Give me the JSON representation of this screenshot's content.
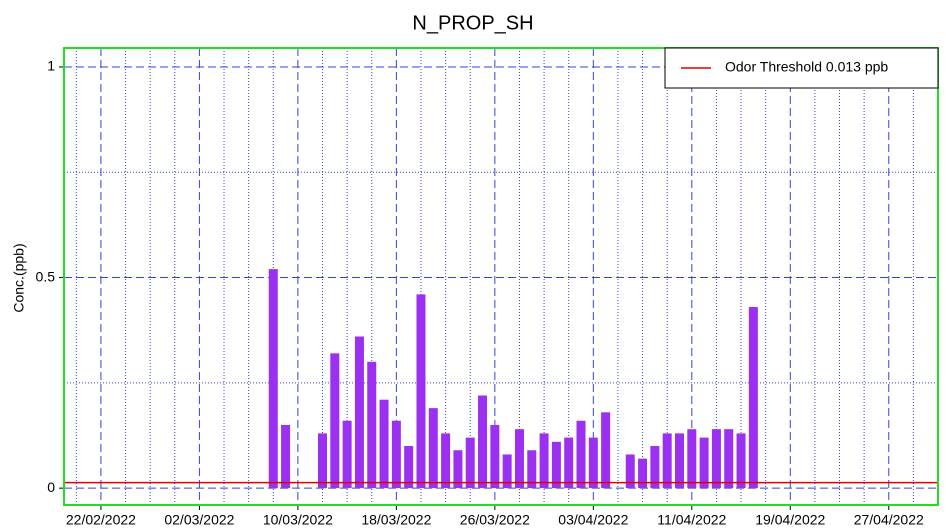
{
  "chart_data": {
    "type": "spike",
    "title": "N_PROP_SH",
    "y_label": "Conc.(ppb)",
    "x": [
      "2022-02-19",
      "2022-02-20",
      "2022-02-21",
      "2022-02-22",
      "2022-02-23",
      "2022-02-24",
      "2022-02-25",
      "2022-02-26",
      "2022-02-27",
      "2022-02-28",
      "2022-03-01",
      "2022-03-02",
      "2022-03-03",
      "2022-03-04",
      "2022-03-05",
      "2022-03-06",
      "2022-03-07",
      "2022-03-08",
      "2022-03-09",
      "2022-03-10",
      "2022-03-11",
      "2022-03-12",
      "2022-03-13",
      "2022-03-14",
      "2022-03-15",
      "2022-03-16",
      "2022-03-17",
      "2022-03-18",
      "2022-03-19",
      "2022-03-20",
      "2022-03-21",
      "2022-03-22",
      "2022-03-23",
      "2022-03-24",
      "2022-03-25",
      "2022-03-26",
      "2022-03-27",
      "2022-03-28",
      "2022-03-29",
      "2022-03-30",
      "2022-03-31",
      "2022-04-01",
      "2022-04-02",
      "2022-04-03",
      "2022-04-04",
      "2022-04-05",
      "2022-04-06",
      "2022-04-07",
      "2022-04-08",
      "2022-04-09",
      "2022-04-10",
      "2022-04-11",
      "2022-04-12",
      "2022-04-13",
      "2022-04-14",
      "2022-04-15",
      "2022-04-16",
      "2022-04-17",
      "2022-04-18",
      "2022-04-19",
      "2022-04-20",
      "2022-04-21",
      "2022-04-22",
      "2022-04-23",
      "2022-04-24",
      "2022-04-25",
      "2022-04-26",
      "2022-04-27",
      "2022-04-28",
      "2022-04-29",
      "2022-04-30"
    ],
    "values": [
      0,
      0,
      0,
      0,
      0,
      0,
      0,
      0,
      0,
      0,
      0,
      0,
      0,
      0,
      0,
      0,
      0,
      0.52,
      0.15,
      0,
      0,
      0.13,
      0.32,
      0.16,
      0.36,
      0.3,
      0.21,
      0.16,
      0.1,
      0.46,
      0.19,
      0.13,
      0.09,
      0.12,
      0.22,
      0.15,
      0.08,
      0.14,
      0.09,
      0.13,
      0.11,
      0.12,
      0.16,
      0.12,
      0.18,
      0,
      0.08,
      0.07,
      0.1,
      0.13,
      0.13,
      0.14,
      0.12,
      0.14,
      0.14,
      0.13,
      0.43,
      0,
      0,
      0,
      0,
      0,
      0,
      0,
      0,
      0,
      0,
      0,
      0,
      0,
      0
    ],
    "color": "#9b30f0",
    "threshold": {
      "label": "Odor Threshold 0.013 ppb",
      "value": 0.013,
      "color": "#e00000"
    },
    "xlim": [
      "2022-02-19",
      "2022-05-01"
    ],
    "xticks": [
      {
        "value": "2022-02-22",
        "label": "22/02/2022"
      },
      {
        "value": "2022-03-02",
        "label": "02/03/2022"
      },
      {
        "value": "2022-03-10",
        "label": "10/03/2022"
      },
      {
        "value": "2022-03-18",
        "label": "18/03/2022"
      },
      {
        "value": "2022-03-26",
        "label": "26/03/2022"
      },
      {
        "value": "2022-04-03",
        "label": "03/04/2022"
      },
      {
        "value": "2022-04-11",
        "label": "11/04/2022"
      },
      {
        "value": "2022-04-19",
        "label": "19/04/2022"
      },
      {
        "value": "2022-04-27",
        "label": "27/04/2022"
      }
    ],
    "minor_xtick_interval_days": 2,
    "ylim": [
      -0.04,
      1.045
    ],
    "yticks": [
      0,
      0.5,
      1
    ],
    "minor_yticks": [
      0.25,
      0.75
    ],
    "grid": true,
    "legend": "top-right"
  }
}
